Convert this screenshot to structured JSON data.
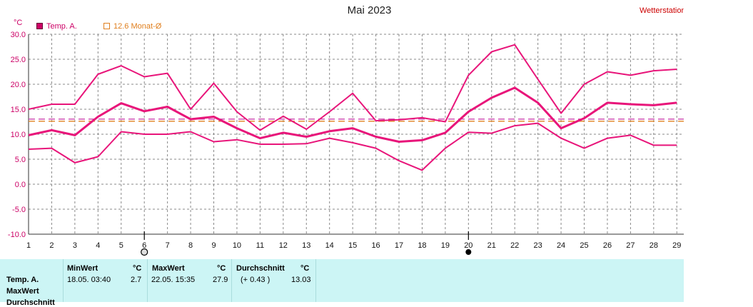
{
  "header": {
    "title": "Mai 2023",
    "station_label": "Wetterstation"
  },
  "legend": [
    {
      "label": "Temp. A.",
      "color": "#cc0066",
      "style": "filled"
    },
    {
      "label": "12.6 Monat-Ø",
      "color": "#e08020",
      "style": "outline"
    }
  ],
  "chart_data": {
    "type": "line",
    "title": "Mai 2023",
    "ylabel": "°C",
    "xlabel": "",
    "x": [
      1,
      2,
      3,
      4,
      5,
      6,
      7,
      8,
      9,
      10,
      11,
      12,
      13,
      14,
      15,
      16,
      17,
      18,
      19,
      20,
      21,
      22,
      23,
      24,
      25,
      26,
      27,
      28,
      29
    ],
    "xlim": [
      1,
      29.3
    ],
    "ylim": [
      -10,
      30
    ],
    "yticks": [
      "-10.0",
      "-5.0",
      "0.0",
      "5.0",
      "10.0",
      "15.0",
      "20.0",
      "25.0",
      "30.0"
    ],
    "grid": true,
    "markers": [
      {
        "day": 6,
        "symbol": "open-circle"
      },
      {
        "day": 20,
        "symbol": "filled-circle"
      }
    ],
    "series": [
      {
        "name": "Temp. A.",
        "role": "max",
        "color": "#e8157a",
        "values": [
          15.0,
          16.0,
          16.0,
          22.0,
          23.7,
          21.5,
          22.2,
          15.0,
          20.2,
          14.5,
          10.8,
          13.6,
          11.0,
          14.5,
          18.2,
          12.7,
          12.9,
          13.3,
          12.5,
          21.8,
          26.5,
          27.9,
          21.0,
          14.2,
          20.0,
          22.5,
          21.8,
          22.7,
          23.0
        ]
      },
      {
        "name": "Temp. A.",
        "role": "mean",
        "color": "#e8157a",
        "values": [
          9.8,
          10.8,
          9.8,
          13.5,
          16.2,
          14.6,
          15.5,
          13.0,
          13.5,
          11.2,
          9.2,
          10.3,
          9.5,
          10.6,
          11.2,
          9.5,
          8.5,
          8.8,
          10.3,
          14.5,
          17.3,
          19.3,
          16.3,
          11.2,
          13.2,
          16.3,
          16.0,
          15.8,
          16.3
        ]
      },
      {
        "name": "Temp. A.",
        "role": "min",
        "color": "#e8157a",
        "values": [
          7.0,
          7.2,
          4.3,
          5.5,
          10.5,
          10.0,
          10.0,
          10.5,
          8.5,
          8.9,
          8.0,
          8.0,
          8.1,
          9.2,
          8.3,
          7.2,
          4.7,
          2.8,
          7.2,
          10.4,
          10.2,
          11.7,
          12.2,
          9.2,
          7.2,
          9.2,
          9.8,
          7.8,
          7.8
        ]
      }
    ],
    "reference_lines": [
      {
        "name": "12.6 Monat-Ø",
        "value": 12.6,
        "color": "#e08020"
      },
      {
        "name": "Temp. A. Ø",
        "value": 13.03,
        "color": "#cc44aa"
      }
    ]
  },
  "summary_table": {
    "row_labels": [
      "Temp. A.",
      "MaxWert",
      "Durchschnitt"
    ],
    "min": {
      "header": "MinWert",
      "unit": "°C",
      "timestamp": "18.05.  03:40",
      "value": "2.7"
    },
    "max": {
      "header": "MaxWert",
      "unit": "°C",
      "timestamp": "22.05.  15:35",
      "value": "27.9"
    },
    "avg": {
      "header": "Durchschnitt",
      "unit": "°C",
      "delta": "(+ 0.43 )",
      "value": "13.03"
    }
  }
}
